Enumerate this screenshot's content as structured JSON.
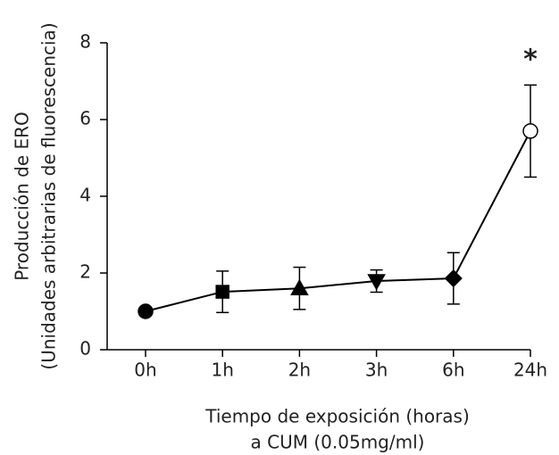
{
  "chart_data": {
    "type": "line",
    "categories": [
      "0h",
      "1h",
      "2h",
      "3h",
      "6h",
      "24h"
    ],
    "series": [
      {
        "color": "#000000",
        "values": [
          1.0,
          1.51,
          1.6,
          1.79,
          1.86,
          5.7
        ],
        "errors": [
          null,
          0.54,
          0.55,
          0.29,
          0.67,
          1.2
        ],
        "markers": [
          "circle",
          "square",
          "triangle-up",
          "triangle-down",
          "diamond",
          "circle"
        ],
        "marker_fill": [
          "filled",
          "filled",
          "filled",
          "filled",
          "filled",
          "open"
        ]
      }
    ],
    "ylim": [
      0,
      8
    ],
    "yticks": [
      0,
      2,
      4,
      6,
      8
    ],
    "y_label": [
      "Producción de ERO",
      "(Unidades arbitrarias de fluorescencia)"
    ],
    "x_label": [
      "Tiempo de exposición (horas)",
      "a CUM (0.05mg/ml)"
    ],
    "annotations": [
      {
        "text": "*",
        "x": "24h"
      }
    ]
  }
}
